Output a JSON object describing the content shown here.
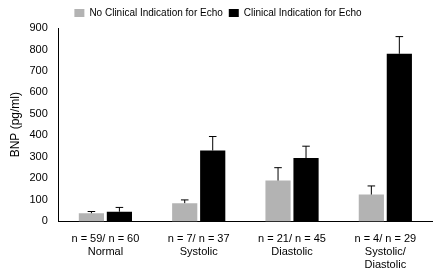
{
  "chart_data": {
    "type": "bar",
    "y_label": "BNP (pg/ml)",
    "categories": [
      "Normal",
      "Systolic",
      "Diastolic",
      "Systolic/Diastolic"
    ],
    "annotations": [
      "n = 59/ n = 60",
      "n = 7/ n = 37",
      "n = 21/ n = 45",
      "n = 4/ n = 29"
    ],
    "series": [
      {
        "name": "No Clinical Indication for Echo",
        "color": "#b3b3b3",
        "values": [
          38,
          85,
          190,
          125
        ],
        "errors": [
          8,
          15,
          60,
          40
        ]
      },
      {
        "name": "Clinical Indication for Echo",
        "color": "#000000",
        "values": [
          45,
          330,
          295,
          780
        ],
        "errors": [
          20,
          65,
          55,
          80
        ]
      }
    ],
    "ylim": [
      0,
      900
    ],
    "yticks": [
      0,
      100,
      200,
      300,
      400,
      500,
      600,
      700,
      800,
      900
    ],
    "grid": false,
    "legend": "top"
  }
}
